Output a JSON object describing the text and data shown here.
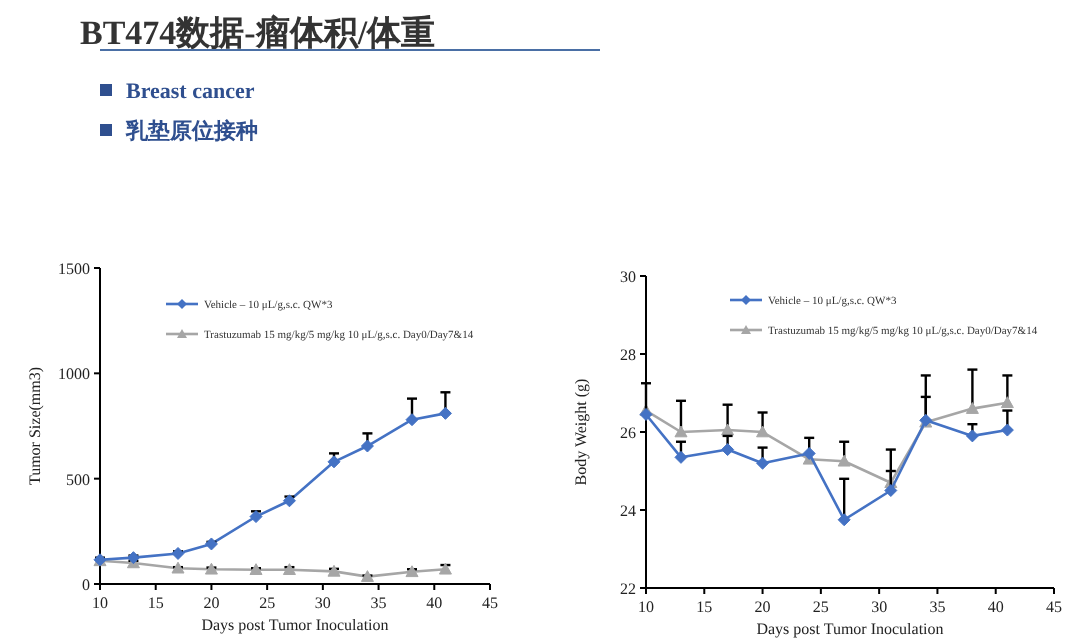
{
  "chart_data": [
    {
      "type": "other",
      "title": "BT474数据-瘤体积/体重",
      "annotations": [
        "Breast cancer",
        "乳垫原位接种"
      ]
    },
    {
      "type": "line",
      "xlabel": "Days post Tumor Inoculation",
      "ylabel": "Tumor Size(mm3)",
      "x": [
        10,
        13,
        17,
        20,
        24,
        27,
        31,
        34,
        38,
        41
      ],
      "xlim": [
        10,
        45
      ],
      "xticks": [
        10,
        15,
        20,
        25,
        30,
        35,
        40,
        45
      ],
      "ylim": [
        0,
        1500
      ],
      "yticks": [
        0,
        500,
        1000,
        1500
      ],
      "grid": false,
      "legend": "top",
      "series": [
        {
          "name": "Vehicle – 10 μL/g,s.c. QW*3",
          "color": "#4472c4",
          "marker": "diamond",
          "values": [
            115,
            125,
            145,
            190,
            320,
            395,
            580,
            655,
            780,
            810
          ],
          "errors": [
            [
              115,
              125
            ],
            [
              125,
              135
            ],
            [
              145,
              155
            ],
            [
              190,
              200
            ],
            [
              320,
              345
            ],
            [
              395,
              415
            ],
            [
              580,
              620
            ],
            [
              655,
              715
            ],
            [
              780,
              880
            ],
            [
              810,
              910
            ]
          ]
        },
        {
          "name": "Trastuzumab 15 mg/kg/5 mg/kg 10 μL/g,s.c. Day0/Day7&14",
          "color": "#a6a6a6",
          "marker": "triangle",
          "values": [
            110,
            100,
            75,
            70,
            68,
            68,
            60,
            35,
            58,
            70
          ],
          "errors": [
            [
              110,
              115
            ],
            [
              100,
              110
            ],
            [
              75,
              80
            ],
            [
              70,
              78
            ],
            [
              68,
              75
            ],
            [
              68,
              80
            ],
            [
              60,
              72
            ],
            [
              35,
              40
            ],
            [
              58,
              70
            ],
            [
              70,
              90
            ]
          ]
        }
      ]
    },
    {
      "type": "line",
      "xlabel": "Days post Tumor Inoculation",
      "ylabel": "Body Weight (g)",
      "x": [
        10,
        13,
        17,
        20,
        24,
        27,
        31,
        34,
        38,
        41
      ],
      "xlim": [
        10,
        45
      ],
      "xticks": [
        10,
        15,
        20,
        25,
        30,
        35,
        40,
        45
      ],
      "ylim": [
        22,
        30
      ],
      "yticks": [
        22,
        24,
        26,
        28,
        30
      ],
      "grid": false,
      "legend": "top",
      "series": [
        {
          "name": "Vehicle – 10 μL/g,s.c. QW*3",
          "color": "#4472c4",
          "marker": "diamond",
          "values": [
            26.45,
            25.35,
            25.55,
            25.2,
            25.45,
            23.75,
            24.5,
            26.3,
            25.9,
            26.05
          ],
          "errors": [
            [
              26.45,
              27.25
            ],
            [
              25.35,
              25.75
            ],
            [
              25.55,
              25.9
            ],
            [
              25.2,
              25.6
            ],
            [
              25.45,
              25.85
            ],
            [
              23.75,
              24.8
            ],
            [
              24.5,
              25.0
            ],
            [
              26.3,
              26.9
            ],
            [
              25.9,
              26.2
            ],
            [
              26.05,
              26.55
            ]
          ]
        },
        {
          "name": "Trastuzumab 15 mg/kg/5 mg/kg 10 μL/g,s.c. Day0/Day7&14",
          "color": "#a6a6a6",
          "marker": "triangle",
          "values": [
            26.55,
            26.0,
            26.05,
            26.0,
            25.3,
            25.25,
            24.7,
            26.25,
            26.6,
            26.75
          ],
          "errors": [
            null,
            [
              26.0,
              26.8
            ],
            [
              26.05,
              26.7
            ],
            [
              26.0,
              26.5
            ],
            null,
            [
              25.25,
              25.75
            ],
            [
              24.7,
              25.55
            ],
            [
              26.25,
              27.45
            ],
            [
              26.6,
              27.6
            ],
            [
              26.75,
              27.45
            ]
          ]
        }
      ]
    }
  ]
}
